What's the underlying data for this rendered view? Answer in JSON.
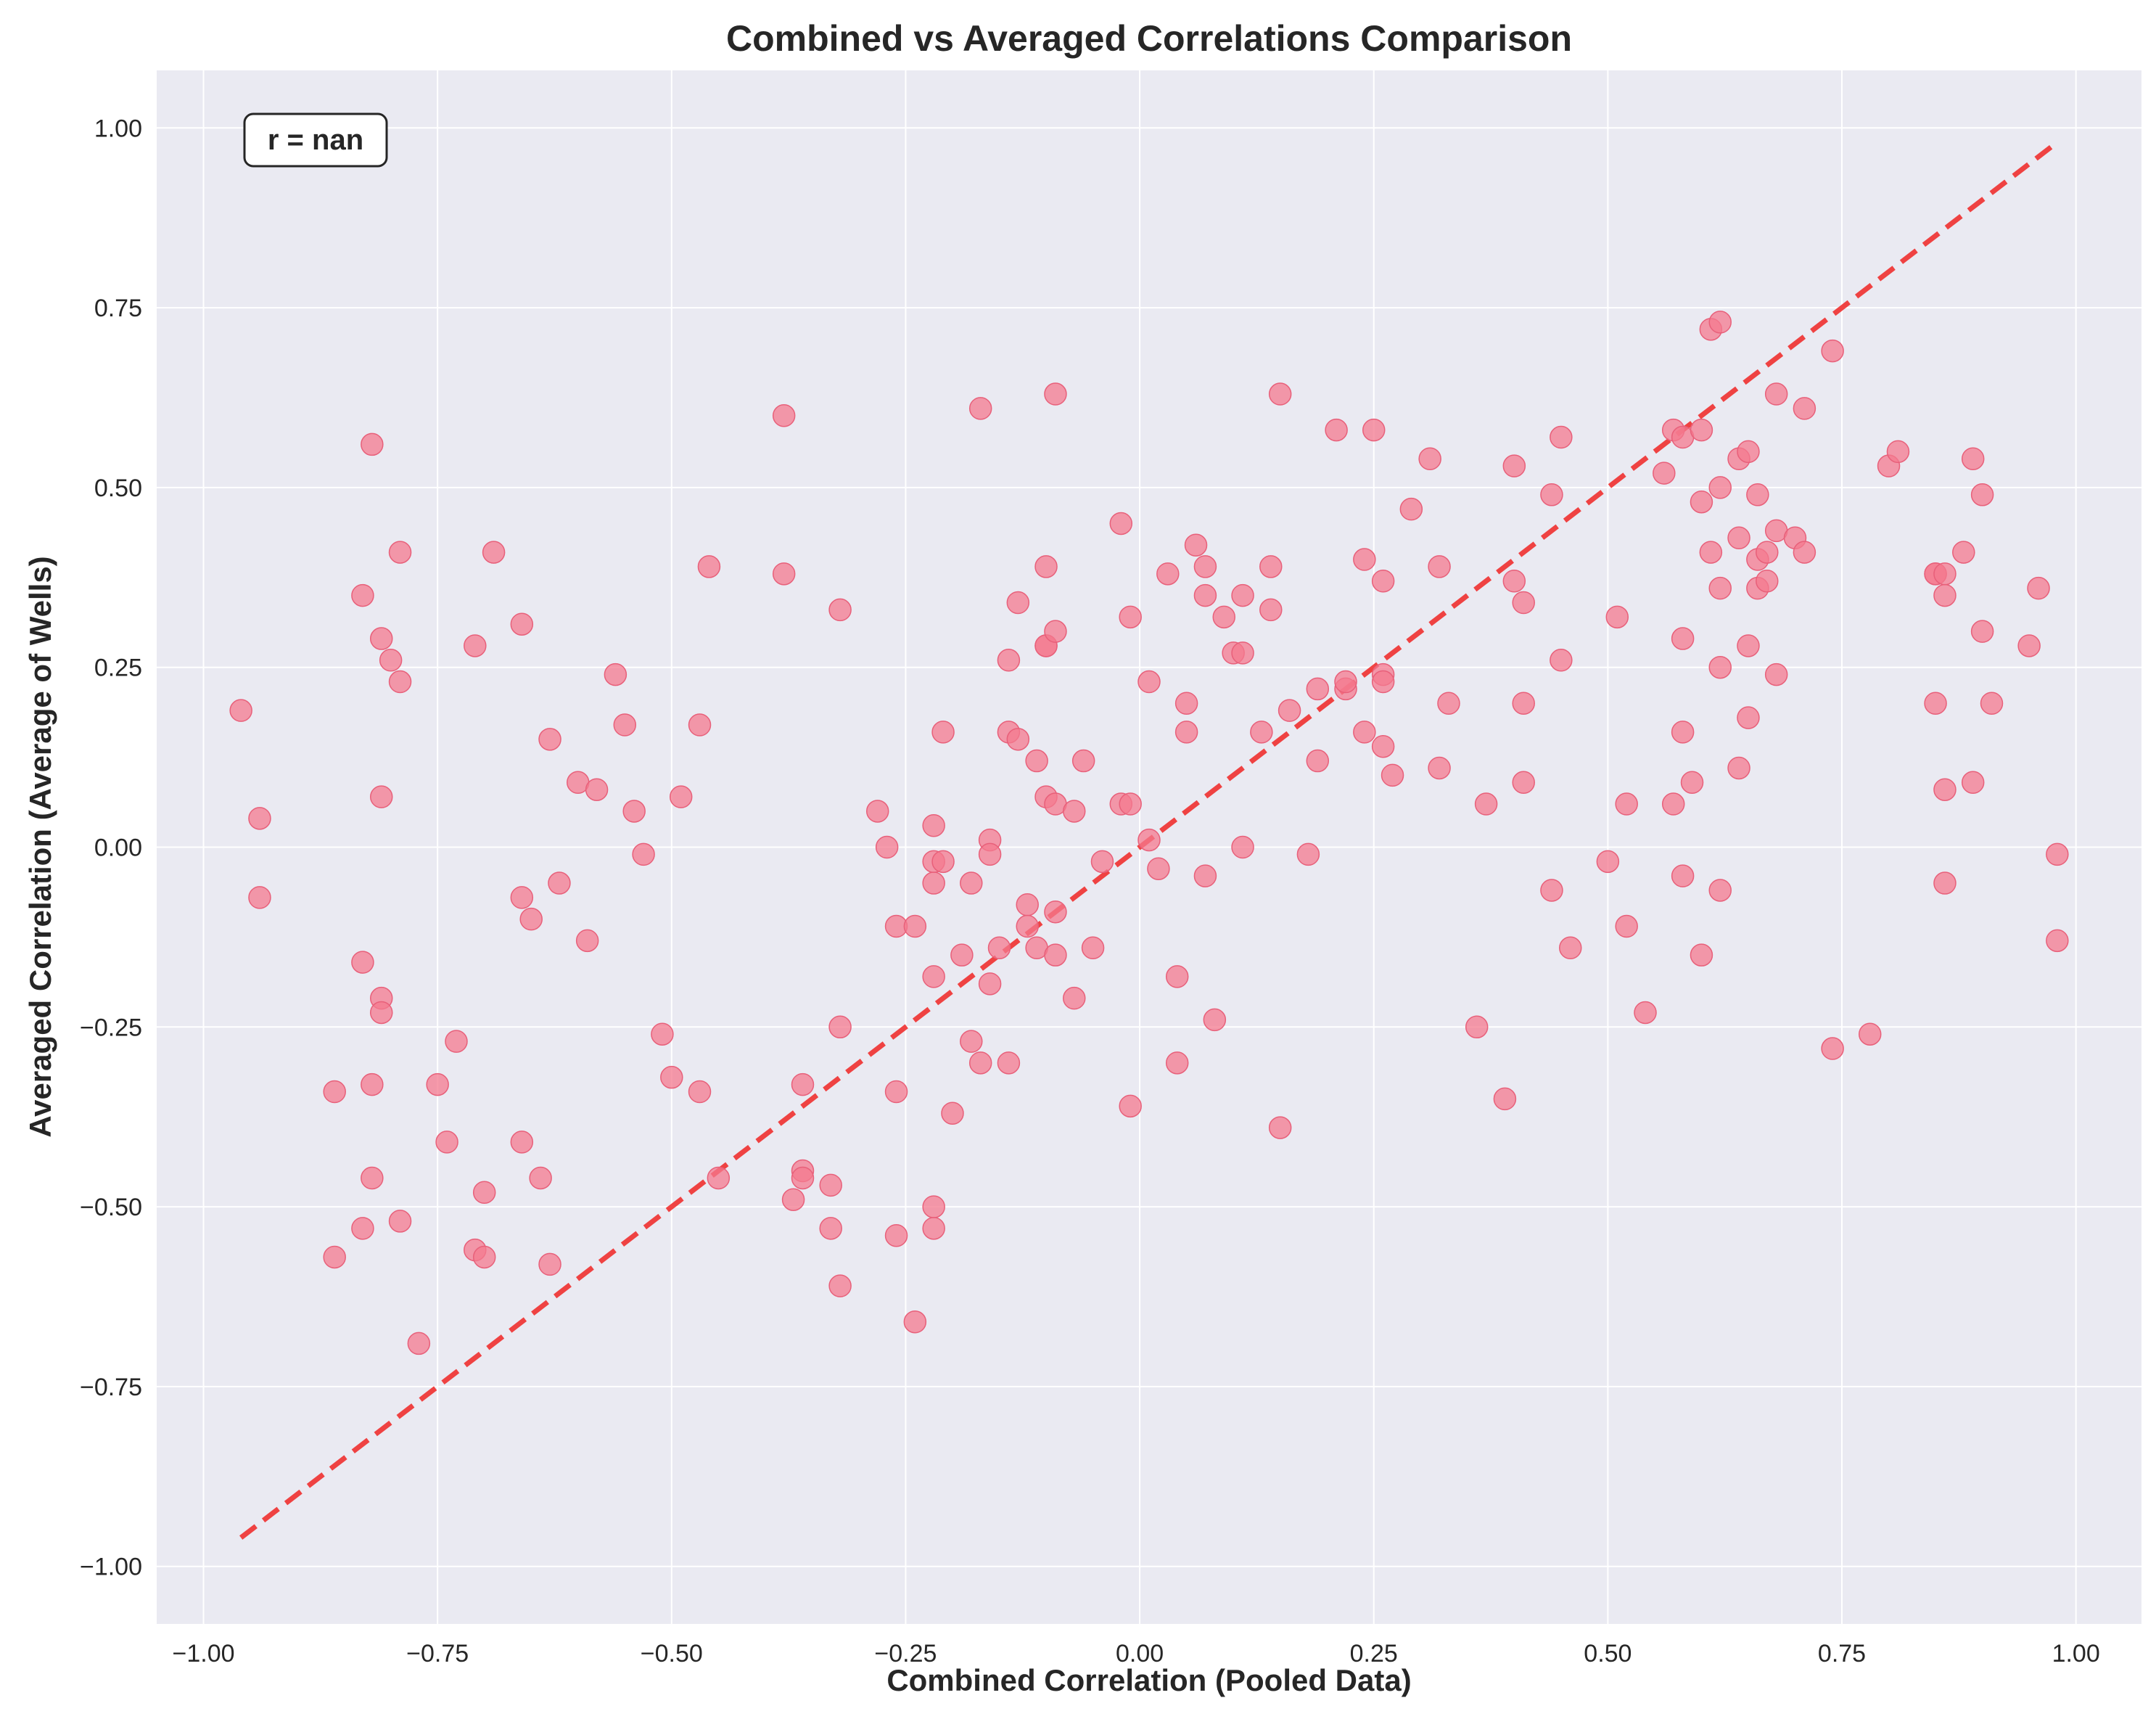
{
  "chart_data": {
    "type": "scatter",
    "title": "Combined vs Averaged Correlations Comparison",
    "xlabel": "Combined Correlation (Pooled Data)",
    "ylabel": "Averaged Correlation (Average of Wells)",
    "xlim": [
      -1.05,
      1.07
    ],
    "ylim": [
      -1.08,
      1.08
    ],
    "xticks": [
      -1.0,
      -0.75,
      -0.5,
      -0.25,
      0.0,
      0.25,
      0.5,
      0.75,
      1.0
    ],
    "yticks": [
      -1.0,
      -0.75,
      -0.5,
      -0.25,
      0.0,
      0.25,
      0.5,
      0.75,
      1.0
    ],
    "xtick_labels": [
      "−1.00",
      "−0.75",
      "−0.50",
      "−0.25",
      "0.00",
      "0.25",
      "0.50",
      "0.75",
      "1.00"
    ],
    "ytick_labels": [
      "−1.00",
      "−0.75",
      "−0.50",
      "−0.25",
      "0.00",
      "0.25",
      "0.50",
      "0.75",
      "1.00"
    ],
    "grid": true,
    "annotation": "r = nan",
    "reference_line": {
      "x": [
        -0.96,
        0.98
      ],
      "y": [
        -0.96,
        0.98
      ],
      "style": "dashed"
    },
    "colors": {
      "points": "#f4798f",
      "reference_line": "#f03030",
      "background": "#eaeaf2",
      "grid": "#ffffff"
    },
    "points": [
      [
        -0.96,
        0.19
      ],
      [
        -0.94,
        0.04
      ],
      [
        -0.94,
        -0.07
      ],
      [
        -0.86,
        -0.34
      ],
      [
        -0.86,
        -0.57
      ],
      [
        -0.83,
        -0.16
      ],
      [
        -0.83,
        -0.53
      ],
      [
        -0.83,
        0.35
      ],
      [
        -0.82,
        0.56
      ],
      [
        -0.82,
        -0.33
      ],
      [
        -0.82,
        -0.46
      ],
      [
        -0.81,
        0.29
      ],
      [
        -0.81,
        0.07
      ],
      [
        -0.81,
        -0.21
      ],
      [
        -0.81,
        -0.23
      ],
      [
        -0.8,
        0.26
      ],
      [
        -0.79,
        0.23
      ],
      [
        -0.79,
        -0.52
      ],
      [
        -0.79,
        0.41
      ],
      [
        -0.77,
        -0.69
      ],
      [
        -0.75,
        -0.33
      ],
      [
        -0.74,
        -0.41
      ],
      [
        -0.73,
        -0.27
      ],
      [
        -0.71,
        0.28
      ],
      [
        -0.71,
        -0.56
      ],
      [
        -0.7,
        -0.48
      ],
      [
        -0.7,
        -0.57
      ],
      [
        -0.69,
        0.41
      ],
      [
        -0.66,
        0.31
      ],
      [
        -0.66,
        -0.07
      ],
      [
        -0.66,
        -0.41
      ],
      [
        -0.65,
        -0.1
      ],
      [
        -0.64,
        -0.46
      ],
      [
        -0.63,
        0.15
      ],
      [
        -0.63,
        -0.58
      ],
      [
        -0.62,
        -0.05
      ],
      [
        -0.6,
        0.09
      ],
      [
        -0.59,
        -0.13
      ],
      [
        -0.58,
        0.08
      ],
      [
        -0.56,
        0.24
      ],
      [
        -0.55,
        0.17
      ],
      [
        -0.54,
        0.05
      ],
      [
        -0.53,
        -0.01
      ],
      [
        -0.51,
        -0.26
      ],
      [
        -0.5,
        -0.32
      ],
      [
        -0.49,
        0.07
      ],
      [
        -0.47,
        0.17
      ],
      [
        -0.47,
        -0.34
      ],
      [
        -0.46,
        0.39
      ],
      [
        -0.45,
        -0.46
      ],
      [
        -0.38,
        0.6
      ],
      [
        -0.38,
        0.38
      ],
      [
        -0.37,
        -0.49
      ],
      [
        -0.36,
        -0.45
      ],
      [
        -0.36,
        -0.46
      ],
      [
        -0.36,
        -0.33
      ],
      [
        -0.33,
        -0.47
      ],
      [
        -0.33,
        -0.53
      ],
      [
        -0.32,
        0.33
      ],
      [
        -0.32,
        -0.25
      ],
      [
        -0.32,
        -0.61
      ],
      [
        -0.28,
        0.05
      ],
      [
        -0.27,
        0.0
      ],
      [
        -0.26,
        -0.11
      ],
      [
        -0.26,
        -0.34
      ],
      [
        -0.26,
        -0.54
      ],
      [
        -0.24,
        -0.11
      ],
      [
        -0.24,
        -0.66
      ],
      [
        -0.22,
        0.03
      ],
      [
        -0.22,
        -0.02
      ],
      [
        -0.22,
        -0.05
      ],
      [
        -0.22,
        -0.18
      ],
      [
        -0.22,
        -0.5
      ],
      [
        -0.22,
        -0.53
      ],
      [
        -0.21,
        -0.02
      ],
      [
        -0.21,
        0.16
      ],
      [
        -0.2,
        -0.37
      ],
      [
        -0.19,
        -0.15
      ],
      [
        -0.18,
        -0.05
      ],
      [
        -0.18,
        -0.27
      ],
      [
        -0.17,
        -0.3
      ],
      [
        -0.17,
        0.61
      ],
      [
        -0.16,
        0.01
      ],
      [
        -0.16,
        -0.19
      ],
      [
        -0.16,
        -0.01
      ],
      [
        -0.15,
        -0.14
      ],
      [
        -0.14,
        0.26
      ],
      [
        -0.14,
        0.16
      ],
      [
        -0.14,
        -0.3
      ],
      [
        -0.13,
        0.34
      ],
      [
        -0.13,
        0.15
      ],
      [
        -0.12,
        -0.08
      ],
      [
        -0.12,
        -0.11
      ],
      [
        -0.11,
        -0.14
      ],
      [
        -0.11,
        0.12
      ],
      [
        -0.1,
        0.28
      ],
      [
        -0.1,
        0.28
      ],
      [
        -0.1,
        0.39
      ],
      [
        -0.1,
        0.07
      ],
      [
        -0.09,
        0.63
      ],
      [
        -0.09,
        0.3
      ],
      [
        -0.09,
        0.06
      ],
      [
        -0.09,
        -0.15
      ],
      [
        -0.09,
        -0.09
      ],
      [
        -0.07,
        -0.21
      ],
      [
        -0.07,
        0.05
      ],
      [
        -0.06,
        0.12
      ],
      [
        -0.05,
        -0.14
      ],
      [
        -0.04,
        -0.02
      ],
      [
        -0.02,
        0.45
      ],
      [
        -0.02,
        0.06
      ],
      [
        -0.01,
        0.06
      ],
      [
        -0.01,
        0.32
      ],
      [
        -0.01,
        -0.36
      ],
      [
        0.01,
        0.01
      ],
      [
        0.01,
        0.23
      ],
      [
        0.02,
        -0.03
      ],
      [
        0.03,
        0.38
      ],
      [
        0.04,
        -0.18
      ],
      [
        0.04,
        -0.3
      ],
      [
        0.05,
        0.2
      ],
      [
        0.05,
        0.16
      ],
      [
        0.06,
        0.42
      ],
      [
        0.07,
        0.39
      ],
      [
        0.07,
        0.35
      ],
      [
        0.07,
        -0.04
      ],
      [
        0.08,
        -0.24
      ],
      [
        0.09,
        0.32
      ],
      [
        0.1,
        0.27
      ],
      [
        0.11,
        0.35
      ],
      [
        0.11,
        0.27
      ],
      [
        0.11,
        0.0
      ],
      [
        0.13,
        0.16
      ],
      [
        0.14,
        0.39
      ],
      [
        0.14,
        0.33
      ],
      [
        0.15,
        0.63
      ],
      [
        0.15,
        -0.39
      ],
      [
        0.16,
        0.19
      ],
      [
        0.18,
        -0.01
      ],
      [
        0.19,
        0.22
      ],
      [
        0.19,
        0.12
      ],
      [
        0.21,
        0.58
      ],
      [
        0.22,
        0.22
      ],
      [
        0.22,
        0.23
      ],
      [
        0.24,
        0.4
      ],
      [
        0.24,
        0.16
      ],
      [
        0.25,
        0.58
      ],
      [
        0.26,
        0.14
      ],
      [
        0.26,
        0.37
      ],
      [
        0.26,
        0.24
      ],
      [
        0.26,
        0.23
      ],
      [
        0.27,
        0.1
      ],
      [
        0.29,
        0.47
      ],
      [
        0.31,
        0.54
      ],
      [
        0.32,
        0.39
      ],
      [
        0.32,
        0.11
      ],
      [
        0.33,
        0.2
      ],
      [
        0.36,
        -0.25
      ],
      [
        0.37,
        0.06
      ],
      [
        0.39,
        -0.35
      ],
      [
        0.4,
        0.37
      ],
      [
        0.4,
        0.53
      ],
      [
        0.41,
        0.34
      ],
      [
        0.41,
        0.2
      ],
      [
        0.41,
        0.09
      ],
      [
        0.44,
        0.49
      ],
      [
        0.44,
        -0.06
      ],
      [
        0.45,
        0.57
      ],
      [
        0.45,
        0.26
      ],
      [
        0.46,
        -0.14
      ],
      [
        0.5,
        -0.02
      ],
      [
        0.51,
        0.32
      ],
      [
        0.52,
        0.06
      ],
      [
        0.52,
        -0.11
      ],
      [
        0.54,
        -0.23
      ],
      [
        0.56,
        0.52
      ],
      [
        0.57,
        0.06
      ],
      [
        0.57,
        0.58
      ],
      [
        0.58,
        0.57
      ],
      [
        0.58,
        0.29
      ],
      [
        0.58,
        0.16
      ],
      [
        0.58,
        -0.04
      ],
      [
        0.59,
        0.09
      ],
      [
        0.6,
        0.48
      ],
      [
        0.6,
        -0.15
      ],
      [
        0.6,
        0.58
      ],
      [
        0.61,
        0.72
      ],
      [
        0.61,
        0.41
      ],
      [
        0.62,
        0.73
      ],
      [
        0.62,
        0.36
      ],
      [
        0.62,
        0.25
      ],
      [
        0.62,
        -0.06
      ],
      [
        0.62,
        0.5
      ],
      [
        0.64,
        0.54
      ],
      [
        0.64,
        0.43
      ],
      [
        0.64,
        0.11
      ],
      [
        0.65,
        0.55
      ],
      [
        0.65,
        0.28
      ],
      [
        0.65,
        0.18
      ],
      [
        0.66,
        0.4
      ],
      [
        0.66,
        0.36
      ],
      [
        0.66,
        0.49
      ],
      [
        0.67,
        0.41
      ],
      [
        0.67,
        0.37
      ],
      [
        0.68,
        0.63
      ],
      [
        0.68,
        0.44
      ],
      [
        0.68,
        0.24
      ],
      [
        0.7,
        0.43
      ],
      [
        0.71,
        0.61
      ],
      [
        0.71,
        0.41
      ],
      [
        0.74,
        0.69
      ],
      [
        0.74,
        -0.28
      ],
      [
        0.78,
        -0.26
      ],
      [
        0.8,
        0.53
      ],
      [
        0.81,
        0.55
      ],
      [
        0.85,
        0.38
      ],
      [
        0.85,
        0.38
      ],
      [
        0.85,
        0.2
      ],
      [
        0.86,
        0.38
      ],
      [
        0.86,
        0.35
      ],
      [
        0.86,
        -0.05
      ],
      [
        0.86,
        0.08
      ],
      [
        0.88,
        0.41
      ],
      [
        0.89,
        0.54
      ],
      [
        0.89,
        0.09
      ],
      [
        0.9,
        0.49
      ],
      [
        0.9,
        0.3
      ],
      [
        0.91,
        0.2
      ],
      [
        0.95,
        0.28
      ],
      [
        0.96,
        0.36
      ],
      [
        0.98,
        -0.01
      ],
      [
        0.98,
        -0.13
      ]
    ]
  }
}
